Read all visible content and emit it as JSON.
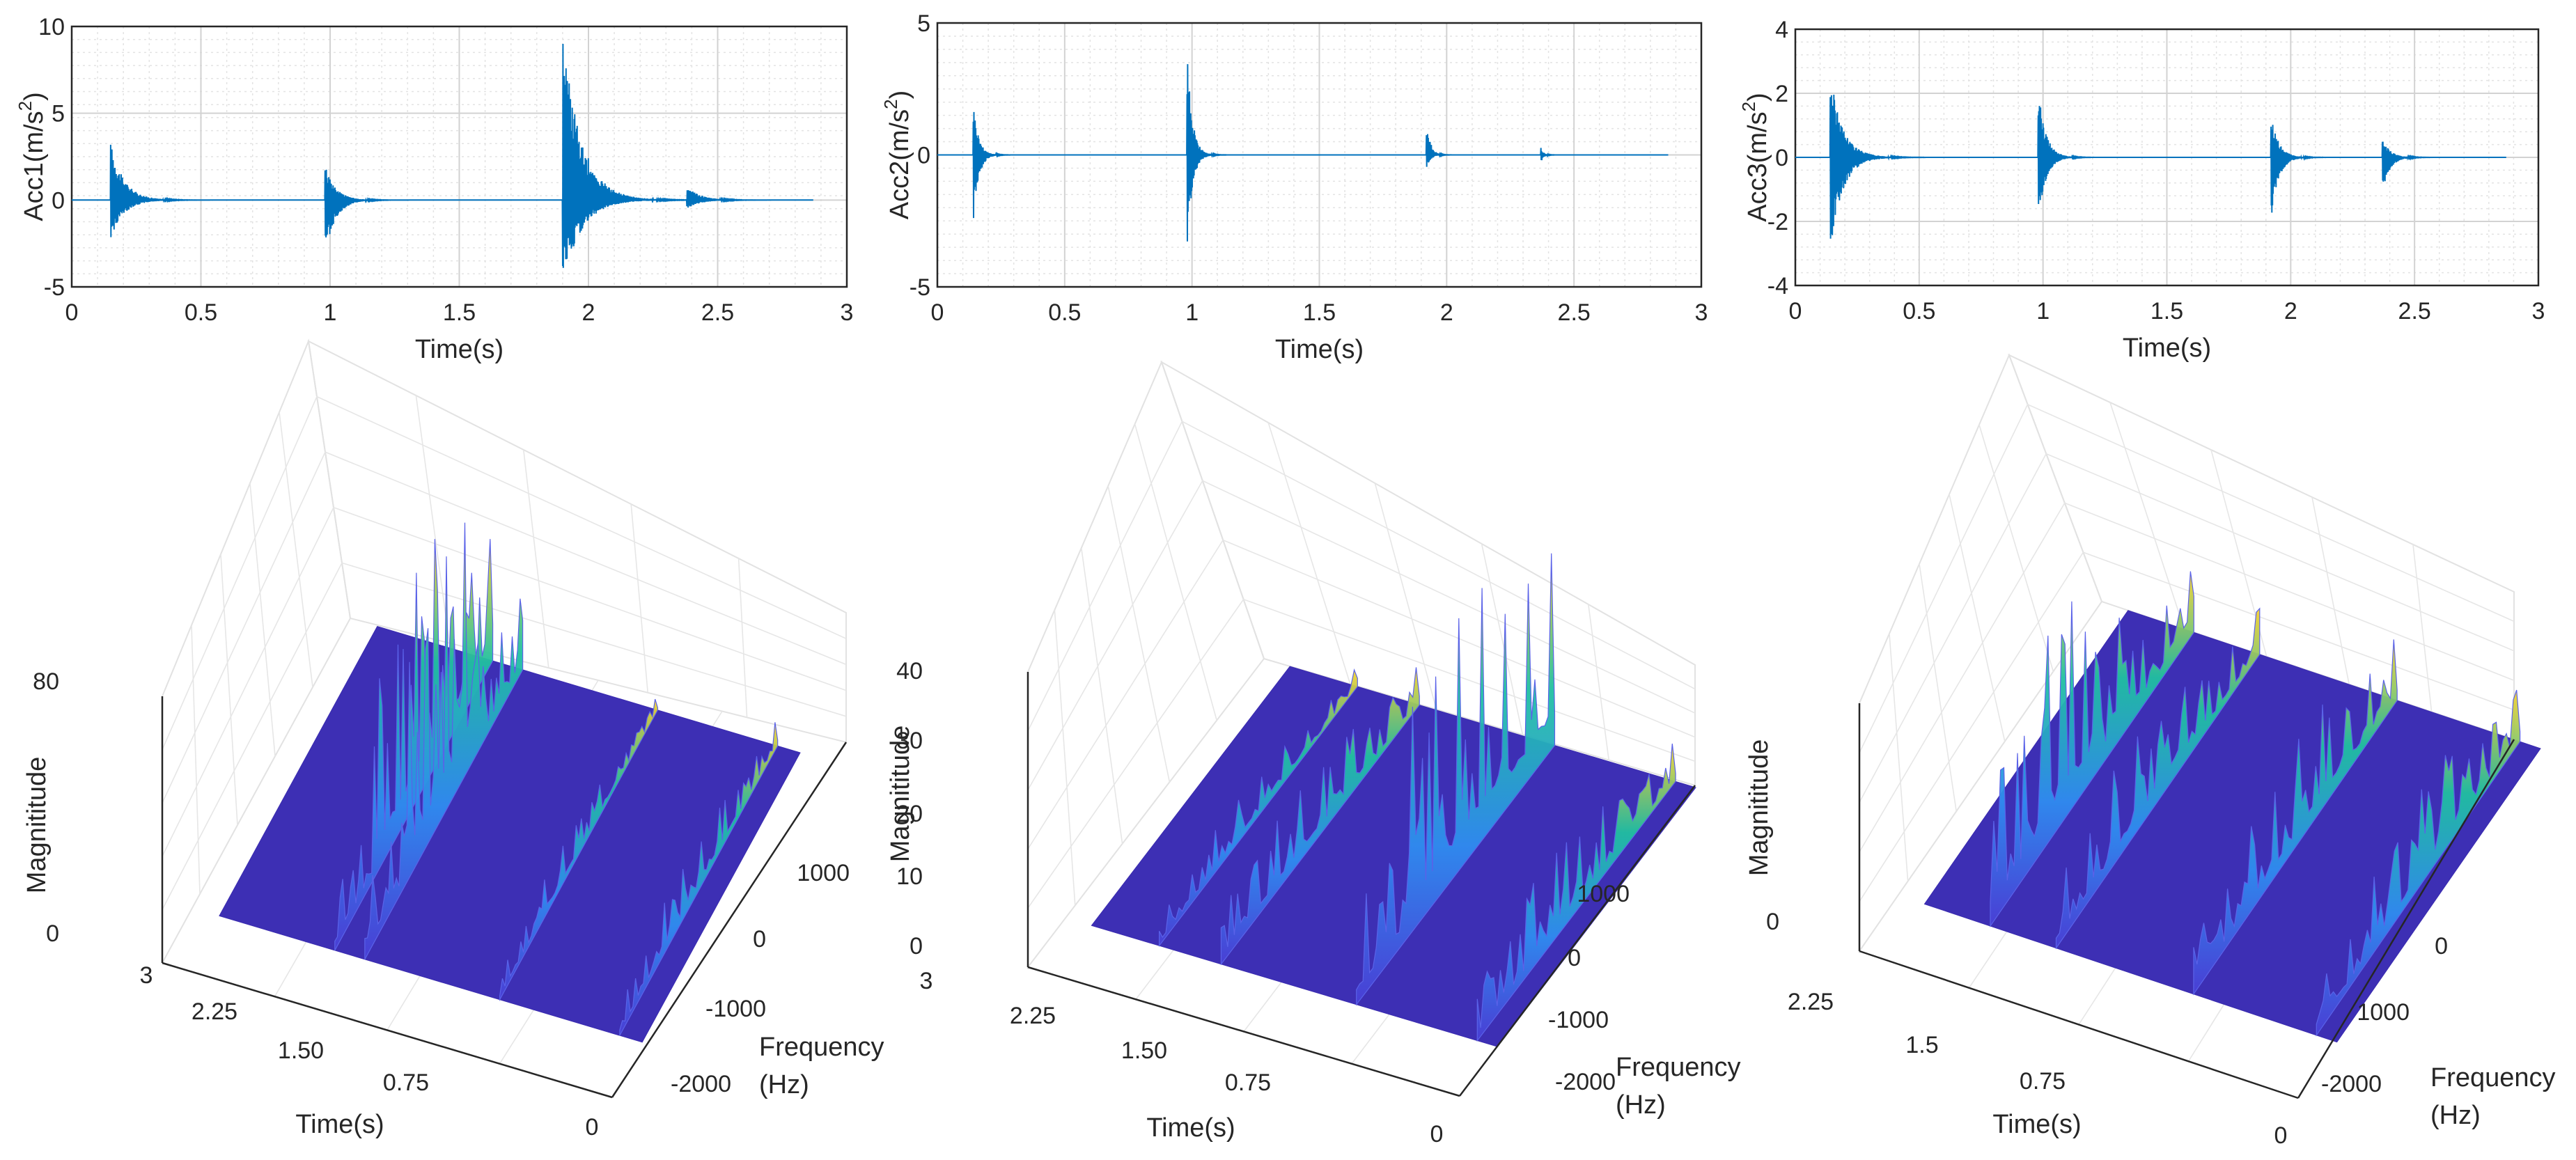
{
  "chart_data": [
    {
      "type": "line",
      "xlabel": "Time(s)",
      "ylabel": "Acc1(m/s",
      "ylabel_sup": "2",
      "ylabel_end": ")",
      "xlim": [
        0,
        3
      ],
      "ylim": [
        -5,
        10
      ],
      "xticks": [
        "0",
        "0.5",
        "1",
        "1.5",
        "2",
        "2.5",
        "3"
      ],
      "yticks": [
        "-5",
        "0",
        "5",
        "10"
      ],
      "signal_end": 2.87,
      "grid": true,
      "minor_grid": true,
      "line_color": "#0072bd",
      "bursts": [
        {
          "t": 0.15,
          "pos": 3.4,
          "neg": -2.3,
          "decay": 0.05
        },
        {
          "t": 0.98,
          "pos": 2.0,
          "neg": -3.2,
          "decay": 0.04
        },
        {
          "t": 1.9,
          "pos": 10.0,
          "neg": -5.0,
          "decay": 0.07
        },
        {
          "t": 2.38,
          "pos": 0.8,
          "neg": -0.5,
          "decay": 0.05
        }
      ]
    },
    {
      "type": "line",
      "xlabel": "Time(s)",
      "ylabel": "Acc2(m/s",
      "ylabel_sup": "2",
      "ylabel_end": ")",
      "xlim": [
        0,
        3
      ],
      "ylim": [
        -5,
        5
      ],
      "xticks": [
        "0",
        "0.5",
        "1",
        "1.5",
        "2",
        "2.5",
        "3"
      ],
      "yticks": [
        "-5",
        "0",
        "5"
      ],
      "signal_end": 2.87,
      "grid": true,
      "minor_grid": true,
      "line_color": "#0072bd",
      "bursts": [
        {
          "t": 0.14,
          "pos": 2.2,
          "neg": -2.9,
          "decay": 0.02
        },
        {
          "t": 0.98,
          "pos": 4.1,
          "neg": -3.7,
          "decay": 0.02
        },
        {
          "t": 1.92,
          "pos": 1.4,
          "neg": -0.6,
          "decay": 0.015
        },
        {
          "t": 2.37,
          "pos": 0.3,
          "neg": -0.3,
          "decay": 0.01
        }
      ]
    },
    {
      "type": "line",
      "xlabel": "Time(s)",
      "ylabel": "Acc3(m/s",
      "ylabel_sup": "2",
      "ylabel_end": ")",
      "xlim": [
        0,
        3
      ],
      "ylim": [
        -4,
        4
      ],
      "xticks": [
        "0",
        "0.5",
        "1",
        "1.5",
        "2",
        "2.5",
        "3"
      ],
      "yticks": [
        "-4",
        "-2",
        "0",
        "2",
        "4"
      ],
      "signal_end": 2.87,
      "grid": true,
      "minor_grid": true,
      "line_color": "#0072bd",
      "bursts": [
        {
          "t": 0.14,
          "pos": 2.7,
          "neg": -3.0,
          "decay": 0.05
        },
        {
          "t": 0.98,
          "pos": 2.2,
          "neg": -2.1,
          "decay": 0.03
        },
        {
          "t": 1.92,
          "pos": 1.4,
          "neg": -2.0,
          "decay": 0.03
        },
        {
          "t": 2.37,
          "pos": 0.6,
          "neg": -1.1,
          "decay": 0.03
        }
      ]
    },
    {
      "type": "surface3d",
      "zlabel": "Magnititude",
      "xlabel": "Time(s)",
      "ylabel": [
        "Frequency",
        "(Hz)"
      ],
      "time_ticks": [
        "3",
        "2.25",
        "1.50",
        "0.75",
        "0"
      ],
      "freq_ticks": [
        "1000",
        "0",
        "-1000",
        "-2000"
      ],
      "mag_ticks": [
        "0",
        "80"
      ],
      "zlim": [
        0,
        80
      ],
      "peak": 80,
      "ridges": [
        {
          "t": 2.05,
          "amps": [
            18,
            60,
            72,
            40
          ]
        },
        {
          "t": 1.85,
          "amps": [
            22,
            68,
            80,
            24
          ]
        },
        {
          "t": 0.95,
          "amps": [
            8,
            12,
            10,
            5
          ]
        },
        {
          "t": 0.15,
          "amps": [
            10,
            16,
            14,
            9
          ]
        }
      ]
    },
    {
      "type": "surface3d",
      "zlabel": "Magnititude",
      "xlabel": "Time(s)",
      "ylabel": [
        "Frequency",
        "(Hz)"
      ],
      "time_ticks": [
        "3",
        "2.25",
        "1.50",
        "0.75",
        "0"
      ],
      "freq_ticks": [
        "1000",
        "0",
        "-1000",
        "-2000"
      ],
      "mag_ticks": [
        "0",
        "10",
        "20",
        "30",
        "40"
      ],
      "zlim": [
        0,
        40
      ],
      "peak": 40,
      "ridges": [
        {
          "t": 2.35,
          "amps": [
            4,
            6,
            5,
            3
          ]
        },
        {
          "t": 1.92,
          "amps": [
            8,
            10,
            9,
            6
          ]
        },
        {
          "t": 0.98,
          "amps": [
            14,
            32,
            36,
            28
          ]
        },
        {
          "t": 0.14,
          "amps": [
            8,
            12,
            10,
            6
          ]
        }
      ]
    },
    {
      "type": "surface3d",
      "zlabel": "Magnititude",
      "xlabel": "Time(s)",
      "ylabel": [
        "Frequency",
        "(Hz)"
      ],
      "time_ticks": [
        "2.25",
        "1.5",
        "0.75",
        "0"
      ],
      "freq_ticks": [
        "0",
        "1000",
        "-2000"
      ],
      "mag_ticks": [
        "0"
      ],
      "zlim": [
        0,
        50
      ],
      "peak": 50,
      "ridges": [
        {
          "t": 2.37,
          "amps": [
            30,
            44,
            26,
            14
          ]
        },
        {
          "t": 1.92,
          "amps": [
            14,
            20,
            16,
            10
          ]
        },
        {
          "t": 0.98,
          "amps": [
            12,
            18,
            22,
            14
          ]
        },
        {
          "t": 0.14,
          "amps": [
            10,
            16,
            20,
            12
          ]
        }
      ]
    }
  ]
}
